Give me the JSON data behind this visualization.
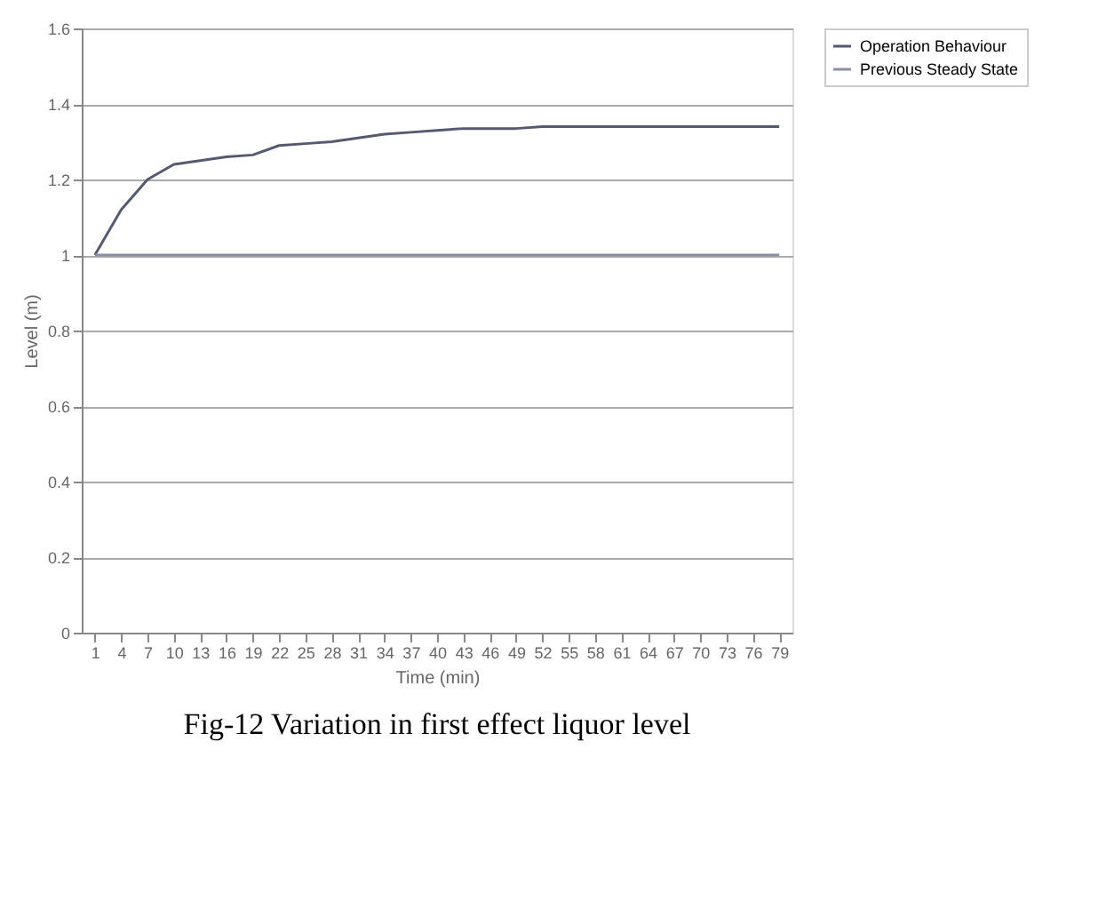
{
  "chart_data": {
    "type": "line",
    "title": "Fig-12 Variation in first effect liquor level",
    "xlabel": "Time (min)",
    "ylabel": "Level (m)",
    "categories": [
      "1",
      "4",
      "7",
      "10",
      "13",
      "16",
      "19",
      "22",
      "25",
      "28",
      "31",
      "34",
      "37",
      "40",
      "43",
      "46",
      "49",
      "52",
      "55",
      "58",
      "61",
      "64",
      "67",
      "70",
      "73",
      "76",
      "79"
    ],
    "series": [
      {
        "name": "Operation Behaviour",
        "color": "#555a70",
        "values": [
          1.0,
          1.12,
          1.2,
          1.24,
          1.25,
          1.26,
          1.265,
          1.29,
          1.295,
          1.3,
          1.31,
          1.32,
          1.325,
          1.33,
          1.335,
          1.335,
          1.335,
          1.34,
          1.34,
          1.34,
          1.34,
          1.34,
          1.34,
          1.34,
          1.34,
          1.34,
          1.34
        ]
      },
      {
        "name": "Previous Steady State",
        "color": "#8a8fa8",
        "values": [
          1,
          1,
          1,
          1,
          1,
          1,
          1,
          1,
          1,
          1,
          1,
          1,
          1,
          1,
          1,
          1,
          1,
          1,
          1,
          1,
          1,
          1,
          1,
          1,
          1,
          1,
          1
        ]
      }
    ],
    "ylim": [
      0,
      1.6
    ],
    "yticks": [
      0,
      0.2,
      0.4,
      0.6,
      0.8,
      1,
      1.2,
      1.4,
      1.6
    ],
    "grid": "y",
    "legend": "right",
    "marker": "none",
    "line_style": "solid"
  }
}
